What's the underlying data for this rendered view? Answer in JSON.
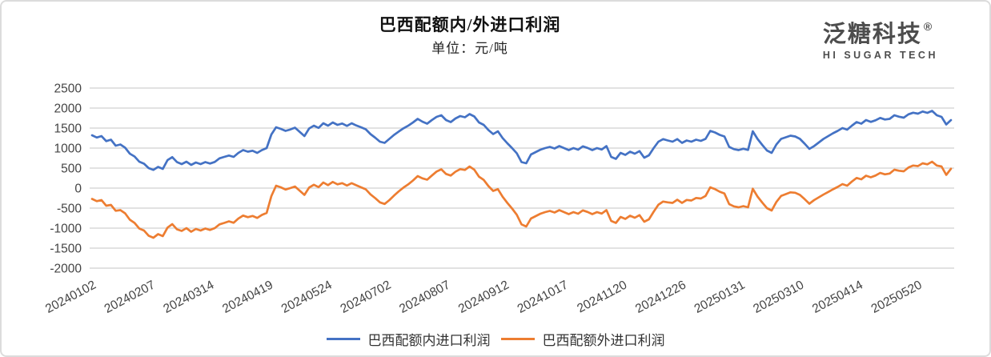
{
  "header": {
    "title": "巴西配额内/外进口利润",
    "subtitle": "单位：元/吨"
  },
  "logo": {
    "name_cn": "泛糖科技",
    "registered_mark": "®",
    "tagline": "HI SUGAR TECH"
  },
  "chart_data": {
    "type": "line",
    "title": "巴西配额内/外进口利润",
    "unit_label": "单位：元/吨",
    "xlabel": "",
    "ylabel": "",
    "ylim": [
      -2000,
      2500
    ],
    "yticks": [
      2500,
      2000,
      1500,
      1000,
      500,
      0,
      -500,
      -1000,
      -1500,
      -2000
    ],
    "grid": "horizontal",
    "legend_position": "bottom",
    "x_unit": "trading-day index (daily series)",
    "x_total_days": 364,
    "x_day_step": 2,
    "x_tick_labels": [
      {
        "label": "20240102",
        "day": 0
      },
      {
        "label": "20240207",
        "day": 25
      },
      {
        "label": "20240314",
        "day": 50
      },
      {
        "label": "20240419",
        "day": 75
      },
      {
        "label": "20240524",
        "day": 100
      },
      {
        "label": "20240702",
        "day": 125
      },
      {
        "label": "20240807",
        "day": 150
      },
      {
        "label": "20240912",
        "day": 175
      },
      {
        "label": "20241017",
        "day": 200
      },
      {
        "label": "20241120",
        "day": 225
      },
      {
        "label": "20241226",
        "day": 250
      },
      {
        "label": "20250131",
        "day": 275
      },
      {
        "label": "20250310",
        "day": 300
      },
      {
        "label": "20250414",
        "day": 325
      },
      {
        "label": "20250520",
        "day": 350
      }
    ],
    "series": [
      {
        "name": "巴西配额内进口利润",
        "color": "#4472C4",
        "values": [
          1320,
          1265,
          1300,
          1175,
          1210,
          1060,
          1090,
          1010,
          860,
          790,
          660,
          610,
          500,
          455,
          530,
          480,
          700,
          775,
          650,
          600,
          660,
          580,
          640,
          600,
          650,
          615,
          655,
          745,
          780,
          815,
          780,
          880,
          950,
          910,
          935,
          880,
          950,
          1000,
          1340,
          1520,
          1480,
          1430,
          1465,
          1510,
          1405,
          1300,
          1490,
          1560,
          1505,
          1620,
          1560,
          1640,
          1580,
          1615,
          1555,
          1620,
          1565,
          1520,
          1470,
          1350,
          1260,
          1160,
          1130,
          1230,
          1330,
          1415,
          1495,
          1560,
          1640,
          1730,
          1660,
          1610,
          1700,
          1780,
          1820,
          1700,
          1650,
          1740,
          1800,
          1770,
          1850,
          1790,
          1640,
          1580,
          1450,
          1350,
          1420,
          1250,
          1120,
          1000,
          870,
          650,
          620,
          840,
          900,
          960,
          1000,
          1030,
          990,
          1050,
          1000,
          950,
          1000,
          960,
          1045,
          1005,
          950,
          1000,
          965,
          1050,
          780,
          730,
          880,
          830,
          910,
          860,
          925,
          760,
          820,
          1000,
          1160,
          1225,
          1190,
          1160,
          1225,
          1130,
          1190,
          1160,
          1210,
          1180,
          1230,
          1430,
          1390,
          1330,
          1290,
          1030,
          975,
          950,
          985,
          955,
          1420,
          1230,
          1080,
          940,
          880,
          1090,
          1230,
          1270,
          1310,
          1290,
          1230,
          1110,
          980,
          1050,
          1140,
          1230,
          1300,
          1370,
          1430,
          1500,
          1460,
          1560,
          1650,
          1610,
          1700,
          1655,
          1695,
          1755,
          1715,
          1730,
          1820,
          1785,
          1760,
          1845,
          1885,
          1860,
          1915,
          1880,
          1930,
          1820,
          1780,
          1590,
          1700
        ]
      },
      {
        "name": "巴西配额外进口利润",
        "color": "#ED7D31",
        "values": [
          -270,
          -325,
          -300,
          -440,
          -420,
          -565,
          -550,
          -630,
          -790,
          -870,
          -1010,
          -1060,
          -1190,
          -1240,
          -1150,
          -1200,
          -985,
          -900,
          -1030,
          -1070,
          -1000,
          -1090,
          -1020,
          -1060,
          -1010,
          -1045,
          -1000,
          -905,
          -870,
          -830,
          -865,
          -760,
          -685,
          -725,
          -695,
          -745,
          -670,
          -620,
          -200,
          60,
          20,
          -35,
          0,
          40,
          -65,
          -170,
          15,
          85,
          25,
          140,
          75,
          155,
          95,
          125,
          65,
          125,
          70,
          20,
          -30,
          -155,
          -250,
          -355,
          -395,
          -300,
          -185,
          -80,
          15,
          95,
          190,
          300,
          245,
          210,
          315,
          415,
          470,
          355,
          315,
          410,
          475,
          455,
          540,
          460,
          285,
          205,
          50,
          -70,
          -25,
          -215,
          -370,
          -510,
          -665,
          -905,
          -960,
          -760,
          -700,
          -640,
          -600,
          -570,
          -610,
          -550,
          -600,
          -650,
          -600,
          -640,
          -555,
          -595,
          -650,
          -600,
          -635,
          -550,
          -820,
          -870,
          -720,
          -770,
          -690,
          -740,
          -675,
          -840,
          -780,
          -590,
          -415,
          -335,
          -355,
          -370,
          -290,
          -370,
          -295,
          -310,
          -245,
          -260,
          -195,
          20,
          -25,
          -90,
          -135,
          -400,
          -455,
          -480,
          -450,
          -480,
          -15,
          -210,
          -360,
          -500,
          -560,
          -345,
          -195,
          -150,
          -105,
          -115,
          -170,
          -275,
          -390,
          -300,
          -230,
          -160,
          -95,
          -30,
          30,
          100,
          60,
          165,
          255,
          220,
          310,
          270,
          315,
          380,
          345,
          365,
          460,
          435,
          420,
          515,
          565,
          550,
          620,
          595,
          660,
          565,
          540,
          330,
          485
        ]
      }
    ]
  }
}
